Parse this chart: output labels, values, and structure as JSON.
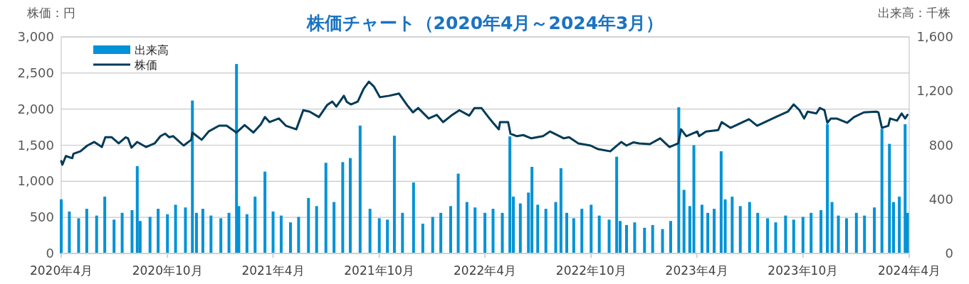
{
  "chart_data": {
    "type": "bar",
    "title": "株価チャート（2020年4月～2024年3月）",
    "ylabel": "株価：円",
    "y2label": "出来高：千株",
    "xlim": [
      "2020-04-01",
      "2024-04-01"
    ],
    "xticks": [
      {
        "value": "2020-04-01",
        "label": "2020年4月"
      },
      {
        "value": "2020-10-01",
        "label": "2020年10月"
      },
      {
        "value": "2021-04-01",
        "label": "2021年4月"
      },
      {
        "value": "2021-10-01",
        "label": "2021年10月"
      },
      {
        "value": "2022-04-01",
        "label": "2022年4月"
      },
      {
        "value": "2022-10-01",
        "label": "2022年10月"
      },
      {
        "value": "2023-04-01",
        "label": "2023年4月"
      },
      {
        "value": "2023-10-01",
        "label": "2023年10月"
      },
      {
        "value": "2024-04-01",
        "label": "2024年4月"
      }
    ],
    "ylim": [
      0,
      3000
    ],
    "yticks": [
      0,
      500,
      {
        "value": 1000,
        "label": "1,000"
      },
      {
        "value": 1500,
        "label": "1,500"
      },
      {
        "value": 2000,
        "label": "2,000"
      },
      {
        "value": 2500,
        "label": "2,500"
      },
      {
        "value": 3000,
        "label": "3,000"
      }
    ],
    "y2lim": [
      0,
      1600
    ],
    "y2ticks": [
      0,
      400,
      800,
      {
        "value": 1200,
        "label": "1,200"
      },
      {
        "value": 1600,
        "label": "1,600"
      }
    ],
    "grid": "y",
    "legend": "top left",
    "series": [
      {
        "name": "出来高",
        "axis": "y2",
        "color": "#0092d6",
        "x": [
          "2020-04-01",
          "2020-04-15",
          "2020-05-01",
          "2020-05-15",
          "2020-06-01",
          "2020-06-15",
          "2020-07-01",
          "2020-07-15",
          "2020-08-01",
          "2020-08-10",
          "2020-08-15",
          "2020-09-01",
          "2020-09-15",
          "2020-10-01",
          "2020-10-15",
          "2020-11-01",
          "2020-11-13",
          "2020-11-20",
          "2020-12-01",
          "2020-12-15",
          "2021-01-01",
          "2021-01-15",
          "2021-01-28",
          "2021-02-01",
          "2021-02-15",
          "2021-03-01",
          "2021-03-18",
          "2021-04-01",
          "2021-04-15",
          "2021-05-01",
          "2021-05-15",
          "2021-06-01",
          "2021-06-15",
          "2021-07-01",
          "2021-07-15",
          "2021-07-30",
          "2021-08-12",
          "2021-08-29",
          "2021-09-15",
          "2021-10-01",
          "2021-10-15",
          "2021-10-27",
          "2021-11-10",
          "2021-11-29",
          "2021-12-15",
          "2022-01-01",
          "2022-01-15",
          "2022-02-01",
          "2022-02-14",
          "2022-03-01",
          "2022-03-15",
          "2022-04-01",
          "2022-04-15",
          "2022-05-01",
          "2022-05-14",
          "2022-05-20",
          "2022-06-01",
          "2022-06-15",
          "2022-06-21",
          "2022-07-01",
          "2022-07-15",
          "2022-08-01",
          "2022-08-10",
          "2022-08-20",
          "2022-09-01",
          "2022-09-15",
          "2022-10-01",
          "2022-10-15",
          "2022-11-01",
          "2022-11-14",
          "2022-11-20",
          "2022-12-01",
          "2022-12-15",
          "2023-01-01",
          "2023-01-15",
          "2023-02-01",
          "2023-02-15",
          "2023-03-01",
          "2023-03-10",
          "2023-03-20",
          "2023-03-27",
          "2023-04-10",
          "2023-04-20",
          "2023-05-01",
          "2023-05-13",
          "2023-05-20",
          "2023-06-01",
          "2023-06-15",
          "2023-07-01",
          "2023-07-15",
          "2023-08-01",
          "2023-08-15",
          "2023-09-01",
          "2023-09-15",
          "2023-10-01",
          "2023-10-15",
          "2023-11-01",
          "2023-11-12",
          "2023-11-20",
          "2023-12-01",
          "2023-12-15",
          "2024-01-01",
          "2024-01-15",
          "2024-02-01",
          "2024-02-14",
          "2024-02-27",
          "2024-03-05",
          "2024-03-15",
          "2024-03-25",
          "2024-03-29"
        ],
        "values": [
          400,
          310,
          260,
          330,
          280,
          420,
          250,
          300,
          320,
          645,
          240,
          270,
          330,
          290,
          360,
          340,
          1130,
          300,
          330,
          280,
          260,
          300,
          1400,
          350,
          290,
          420,
          605,
          310,
          280,
          230,
          270,
          410,
          350,
          670,
          380,
          675,
          705,
          945,
          330,
          260,
          250,
          870,
          300,
          525,
          220,
          270,
          300,
          350,
          590,
          380,
          340,
          300,
          330,
          300,
          865,
          420,
          370,
          450,
          640,
          360,
          330,
          380,
          630,
          300,
          260,
          330,
          360,
          280,
          250,
          715,
          240,
          210,
          230,
          190,
          210,
          180,
          240,
          1080,
          470,
          350,
          800,
          360,
          300,
          330,
          755,
          400,
          420,
          350,
          380,
          300,
          260,
          230,
          280,
          250,
          270,
          300,
          320,
          955,
          380,
          280,
          260,
          300,
          280,
          340,
          920,
          810,
          380,
          420,
          955,
          300
        ]
      },
      {
        "name": "株価",
        "type": "line",
        "color": "#003b57",
        "x": [
          "2020-04-01",
          "2020-04-03",
          "2020-04-09",
          "2020-04-20",
          "2020-04-22",
          "2020-05-04",
          "2020-05-16",
          "2020-05-28",
          "2020-06-10",
          "2020-06-16",
          "2020-06-27",
          "2020-07-09",
          "2020-07-21",
          "2020-07-25",
          "2020-07-31",
          "2020-08-10",
          "2020-08-25",
          "2020-09-09",
          "2020-09-19",
          "2020-09-27",
          "2020-10-04",
          "2020-10-11",
          "2020-10-29",
          "2020-11-11",
          "2020-11-13",
          "2020-11-29",
          "2020-12-11",
          "2020-12-29",
          "2021-01-11",
          "2021-01-28",
          "2021-02-11",
          "2021-02-26",
          "2021-03-11",
          "2021-03-18",
          "2021-03-26",
          "2021-04-11",
          "2021-04-23",
          "2021-05-11",
          "2021-05-23",
          "2021-06-03",
          "2021-06-19",
          "2021-07-03",
          "2021-07-12",
          "2021-07-19",
          "2021-08-01",
          "2021-08-06",
          "2021-08-13",
          "2021-08-19",
          "2021-08-25",
          "2021-09-04",
          "2021-09-13",
          "2021-09-22",
          "2021-10-02",
          "2021-10-18",
          "2021-11-04",
          "2021-11-18",
          "2021-11-28",
          "2021-12-07",
          "2021-12-25",
          "2022-01-08",
          "2022-01-19",
          "2022-02-02",
          "2022-02-16",
          "2022-03-05",
          "2022-03-14",
          "2022-03-26",
          "2022-04-07",
          "2022-04-15",
          "2022-04-25",
          "2022-04-27",
          "2022-05-11",
          "2022-05-15",
          "2022-05-26",
          "2022-06-06",
          "2022-06-20",
          "2022-07-10",
          "2022-07-22",
          "2022-08-15",
          "2022-08-24",
          "2022-09-09",
          "2022-09-30",
          "2022-10-13",
          "2022-11-03",
          "2022-11-10",
          "2022-11-22",
          "2022-12-01",
          "2022-12-13",
          "2022-12-23",
          "2023-01-10",
          "2023-01-28",
          "2023-02-13",
          "2023-02-28",
          "2023-03-05",
          "2023-03-14",
          "2023-04-02",
          "2023-04-05",
          "2023-04-17",
          "2023-05-08",
          "2023-05-14",
          "2023-05-29",
          "2023-06-30",
          "2023-07-14",
          "2023-08-15",
          "2023-09-05",
          "2023-09-15",
          "2023-09-25",
          "2023-10-03",
          "2023-10-09",
          "2023-10-24",
          "2023-10-30",
          "2023-11-07",
          "2023-11-12",
          "2023-11-18",
          "2023-11-28",
          "2023-12-16",
          "2023-12-28",
          "2024-01-14",
          "2024-02-04",
          "2024-02-08",
          "2024-02-14",
          "2024-02-25",
          "2024-02-28",
          "2024-03-11",
          "2024-03-19",
          "2024-03-25",
          "2024-03-29"
        ],
        "values": [
          1280,
          1230,
          1350,
          1320,
          1380,
          1415,
          1495,
          1545,
          1475,
          1610,
          1610,
          1525,
          1610,
          1595,
          1465,
          1545,
          1475,
          1525,
          1625,
          1660,
          1610,
          1625,
          1495,
          1575,
          1675,
          1575,
          1690,
          1770,
          1770,
          1675,
          1780,
          1675,
          1790,
          1890,
          1820,
          1870,
          1770,
          1720,
          1985,
          1965,
          1890,
          2055,
          2105,
          2035,
          2185,
          2100,
          2065,
          2085,
          2105,
          2280,
          2380,
          2310,
          2165,
          2185,
          2215,
          2055,
          1955,
          2015,
          1870,
          1920,
          1820,
          1910,
          1985,
          1910,
          2015,
          2015,
          1890,
          1810,
          1720,
          1820,
          1820,
          1660,
          1625,
          1640,
          1595,
          1625,
          1690,
          1595,
          1610,
          1525,
          1495,
          1445,
          1415,
          1465,
          1545,
          1495,
          1540,
          1525,
          1515,
          1595,
          1475,
          1525,
          1720,
          1625,
          1690,
          1625,
          1690,
          1710,
          1820,
          1740,
          1860,
          1770,
          1890,
          1965,
          2065,
          1985,
          1870,
          1965,
          1940,
          2015,
          1985,
          1810,
          1870,
          1870,
          1810,
          1890,
          1955,
          1965,
          1955,
          1740,
          1770,
          1870,
          1840,
          1940,
          1870,
          1920
        ]
      }
    ]
  }
}
